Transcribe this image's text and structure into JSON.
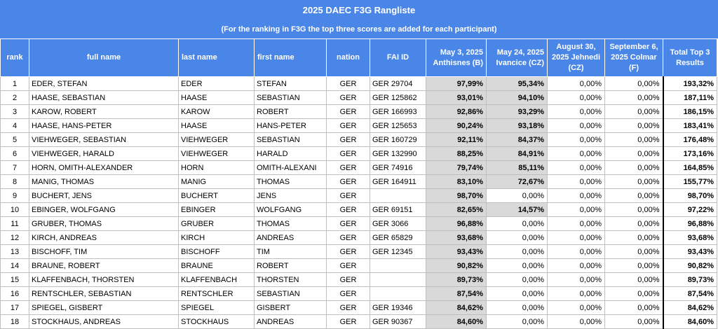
{
  "header": {
    "title": "2025 DAEC F3G Rangliste",
    "subtitle": "(For the ranking in F3G the top three scores are added for each participant)"
  },
  "columns": {
    "rank": "rank",
    "full_name": "full name",
    "last_name": "last name",
    "first_name": "first name",
    "nation": "nation",
    "fai_id": "FAI ID",
    "event1": "May 3, 2025 Anthisnes (B)",
    "event2": "May 24, 2025 Ivancice (CZ)",
    "event3": "August 30, 2025 Jehnedi (CZ)",
    "event4": "September 6, 2025 Colmar (F)",
    "total": "Total Top 3 Results"
  },
  "colors": {
    "header_bg": "#4a86e8",
    "highlight_bg": "#d9d9d9"
  },
  "rows": [
    {
      "rank": "1",
      "full": "EDER, STEFAN",
      "last": "EDER",
      "first": "STEFAN",
      "nation": "GER",
      "fai": "GER 29704",
      "e1": "97,99%",
      "e2": "95,34%",
      "e3": "0,00%",
      "e4": "0,00%",
      "total": "193,32%",
      "hl": [
        1,
        2
      ]
    },
    {
      "rank": "2",
      "full": "HAASE, SEBASTIAN",
      "last": "HAASE",
      "first": "SEBASTIAN",
      "nation": "GER",
      "fai": "GER 125862",
      "e1": "93,01%",
      "e2": "94,10%",
      "e3": "0,00%",
      "e4": "0,00%",
      "total": "187,11%",
      "hl": [
        1,
        2
      ]
    },
    {
      "rank": "3",
      "full": "KAROW, ROBERT",
      "last": "KAROW",
      "first": "ROBERT",
      "nation": "GER",
      "fai": "GER 166993",
      "e1": "92,86%",
      "e2": "93,29%",
      "e3": "0,00%",
      "e4": "0,00%",
      "total": "186,15%",
      "hl": [
        1,
        2
      ]
    },
    {
      "rank": "4",
      "full": "HAASE, HANS-PETER",
      "last": "HAASE",
      "first": "HANS-PETER",
      "nation": "GER",
      "fai": "GER 125653",
      "e1": "90,24%",
      "e2": "93,18%",
      "e3": "0,00%",
      "e4": "0,00%",
      "total": "183,41%",
      "hl": [
        1,
        2
      ]
    },
    {
      "rank": "5",
      "full": "VIEHWEGER, SEBASTIAN",
      "last": "VIEHWEGER",
      "first": "SEBASTIAN",
      "nation": "GER",
      "fai": "GER 160729",
      "e1": "92,11%",
      "e2": "84,37%",
      "e3": "0,00%",
      "e4": "0,00%",
      "total": "176,48%",
      "hl": [
        1,
        2
      ]
    },
    {
      "rank": "6",
      "full": "VIEHWEGER, HARALD",
      "last": "VIEHWEGER",
      "first": "HARALD",
      "nation": "GER",
      "fai": "GER 132990",
      "e1": "88,25%",
      "e2": "84,91%",
      "e3": "0,00%",
      "e4": "0,00%",
      "total": "173,16%",
      "hl": [
        1,
        2
      ]
    },
    {
      "rank": "7",
      "full": "HORN, OMITH-ALEXANDER",
      "last": "HORN",
      "first": "OMITH-ALEXANI",
      "nation": "GER",
      "fai": "GER 74916",
      "e1": "79,74%",
      "e2": "85,11%",
      "e3": "0,00%",
      "e4": "0,00%",
      "total": "164,85%",
      "hl": [
        1,
        2
      ]
    },
    {
      "rank": "8",
      "full": "MANIG, THOMAS",
      "last": "MANIG",
      "first": "THOMAS",
      "nation": "GER",
      "fai": "GER 164911",
      "e1": "83,10%",
      "e2": "72,67%",
      "e3": "0,00%",
      "e4": "0,00%",
      "total": "155,77%",
      "hl": [
        1,
        2
      ]
    },
    {
      "rank": "9",
      "full": "BUCHERT, JENS",
      "last": "BUCHERT",
      "first": "JENS",
      "nation": "GER",
      "fai": "",
      "e1": "98,70%",
      "e2": "0,00%",
      "e3": "0,00%",
      "e4": "0,00%",
      "total": "98,70%",
      "hl": [
        1
      ]
    },
    {
      "rank": "10",
      "full": "EBINGER, WOLFGANG",
      "last": "EBINGER",
      "first": "WOLFGANG",
      "nation": "GER",
      "fai": "GER 69151",
      "e1": "82,65%",
      "e2": "14,57%",
      "e3": "0,00%",
      "e4": "0,00%",
      "total": "97,22%",
      "hl": [
        1,
        2
      ]
    },
    {
      "rank": "11",
      "full": "GRUBER, THOMAS",
      "last": "GRUBER",
      "first": "THOMAS",
      "nation": "GER",
      "fai": "GER 3066",
      "e1": "96,88%",
      "e2": "0,00%",
      "e3": "0,00%",
      "e4": "0,00%",
      "total": "96,88%",
      "hl": [
        1
      ]
    },
    {
      "rank": "12",
      "full": "KIRCH, ANDREAS",
      "last": "KIRCH",
      "first": "ANDREAS",
      "nation": "GER",
      "fai": "GER 65829",
      "e1": "93,68%",
      "e2": "0,00%",
      "e3": "0,00%",
      "e4": "0,00%",
      "total": "93,68%",
      "hl": [
        1
      ]
    },
    {
      "rank": "13",
      "full": "BISCHOFF, TIM",
      "last": "BISCHOFF",
      "first": "TIM",
      "nation": "GER",
      "fai": "GER 12345",
      "e1": "93,43%",
      "e2": "0,00%",
      "e3": "0,00%",
      "e4": "0,00%",
      "total": "93,43%",
      "hl": [
        1
      ]
    },
    {
      "rank": "14",
      "full": "BRAUNE, ROBERT",
      "last": "BRAUNE",
      "first": "ROBERT",
      "nation": "GER",
      "fai": "",
      "e1": "90,82%",
      "e2": "0,00%",
      "e3": "0,00%",
      "e4": "0,00%",
      "total": "90,82%",
      "hl": [
        1
      ]
    },
    {
      "rank": "15",
      "full": "KLAFFENBACH, THORSTEN",
      "last": "KLAFFENBACH",
      "first": "THORSTEN",
      "nation": "GER",
      "fai": "",
      "e1": "89,73%",
      "e2": "0,00%",
      "e3": "0,00%",
      "e4": "0,00%",
      "total": "89,73%",
      "hl": [
        1
      ]
    },
    {
      "rank": "16",
      "full": "RENTSCHLER, SEBASTIAN",
      "last": "RENTSCHLER",
      "first": "SEBASTIAN",
      "nation": "GER",
      "fai": "",
      "e1": "87,54%",
      "e2": "0,00%",
      "e3": "0,00%",
      "e4": "0,00%",
      "total": "87,54%",
      "hl": [
        1
      ]
    },
    {
      "rank": "17",
      "full": "SPIEGEL, GISBERT",
      "last": "SPIEGEL",
      "first": "GISBERT",
      "nation": "GER",
      "fai": "GER 19346",
      "e1": "84,62%",
      "e2": "0,00%",
      "e3": "0,00%",
      "e4": "0,00%",
      "total": "84,62%",
      "hl": [
        1
      ]
    },
    {
      "rank": "18",
      "full": "STOCKHAUS, ANDREAS",
      "last": "STOCKHAUS",
      "first": "ANDREAS",
      "nation": "GER",
      "fai": "GER 90367",
      "e1": "84,60%",
      "e2": "0,00%",
      "e3": "0,00%",
      "e4": "0,00%",
      "total": "84,60%",
      "hl": [
        1
      ]
    }
  ]
}
